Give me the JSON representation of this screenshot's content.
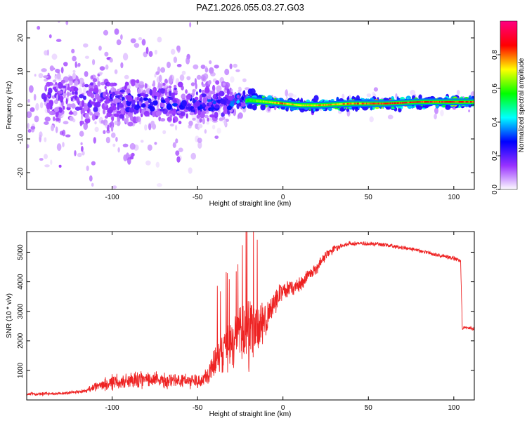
{
  "chart_data": [
    {
      "type": "heatmap",
      "title": "PAZ1.2026.055.03.27.G03",
      "xlabel": "Height of straight line (km)",
      "ylabel": "Frequency (Hz)",
      "xlim": [
        -150,
        112
      ],
      "ylim": [
        -25,
        25
      ],
      "xticks": [
        -100,
        -50,
        0,
        50,
        100
      ],
      "yticks": [
        -20,
        -10,
        0,
        10,
        20
      ],
      "colorbar": {
        "label": "Normalized spectral amplitude",
        "range": [
          0,
          1
        ],
        "ticks": [
          "0.0",
          "0.2",
          "0.4",
          "0.6",
          "0.8"
        ],
        "tick_values": [
          0,
          0.2,
          0.4,
          0.6,
          0.8
        ],
        "colormap": [
          "#ffffff",
          "#9932ff",
          "#0000ff",
          "#00ffff",
          "#00ff00",
          "#ffff00",
          "#ff0000",
          "#ff0080"
        ]
      },
      "ridge": {
        "x": [
          -130,
          -110,
          -90,
          -70,
          -50,
          -30,
          -20,
          -10,
          0,
          10,
          20,
          40,
          60,
          80,
          100,
          112
        ],
        "frequency": [
          2,
          1.5,
          1,
          1,
          0.5,
          0.5,
          1.5,
          1,
          0.5,
          0,
          0,
          0.5,
          0.5,
          1,
          1,
          1
        ],
        "spread_hz": [
          14,
          12,
          10,
          9,
          8,
          6,
          3,
          2.5,
          2,
          2,
          2,
          2,
          2,
          2,
          2,
          2
        ],
        "amplitude": [
          0.2,
          0.25,
          0.3,
          0.3,
          0.35,
          0.35,
          0.6,
          0.75,
          0.85,
          0.75,
          0.8,
          0.85,
          0.9,
          0.9,
          0.9,
          0.9
        ]
      }
    },
    {
      "type": "line",
      "xlabel": "Height of straight line (km)",
      "ylabel": "SNR (10 * v/v)",
      "xlim": [
        -150,
        112
      ],
      "ylim": [
        0,
        5700
      ],
      "xticks": [
        -100,
        -50,
        0,
        50,
        100
      ],
      "yticks": [
        1000,
        2000,
        3000,
        4000,
        5000
      ],
      "color": "#ee2222",
      "series": [
        {
          "name": "SNR",
          "x": [
            -150,
            -130,
            -115,
            -110,
            -100,
            -90,
            -80,
            -70,
            -60,
            -50,
            -45,
            -40,
            -35,
            -30,
            -25,
            -20,
            -15,
            -10,
            -5,
            0,
            5,
            10,
            15,
            20,
            25,
            30,
            35,
            40,
            50,
            60,
            70,
            80,
            90,
            100,
            104,
            105,
            106,
            112
          ],
          "values": [
            200,
            220,
            300,
            450,
            600,
            650,
            700,
            650,
            650,
            650,
            700,
            1200,
            1700,
            2000,
            2100,
            2300,
            2500,
            2700,
            3300,
            3700,
            3800,
            3900,
            4200,
            4500,
            4900,
            5100,
            5250,
            5300,
            5300,
            5250,
            5150,
            5050,
            4900,
            4800,
            4700,
            2400,
            2450,
            2400
          ],
          "noise": [
            60,
            60,
            80,
            200,
            350,
            350,
            350,
            300,
            300,
            300,
            400,
            800,
            1100,
            1000,
            1200,
            1600,
            1000,
            700,
            500,
            350,
            300,
            300,
            280,
            250,
            200,
            150,
            100,
            100,
            80,
            80,
            80,
            80,
            80,
            80,
            80,
            80,
            80,
            80
          ]
        }
      ]
    }
  ]
}
